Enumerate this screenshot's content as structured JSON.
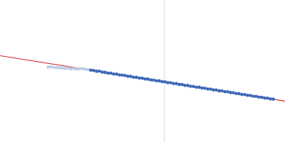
{
  "chart_data": {
    "type": "scatter",
    "xlim": [
      0,
      400
    ],
    "ylim": [
      0,
      200
    ],
    "tick_labels": false,
    "grid": false,
    "reference_x": 230,
    "reference_color": "#d5dcea",
    "fit": {
      "type": "line",
      "color": "#d62728",
      "x": [
        0,
        400
      ],
      "values": [
        122,
        58
      ]
    },
    "series": [
      {
        "color": "#bccbe6",
        "marker": "circle",
        "x": [
          67,
          71,
          75,
          79,
          83,
          87,
          91,
          95,
          99,
          103,
          107,
          111,
          115,
          119,
          123
        ],
        "values": [
          106,
          106.3,
          105.5,
          105.2,
          105,
          104.6,
          104.2,
          104.4,
          103.4,
          104,
          103.2,
          103.6,
          104,
          103.1,
          102.4
        ]
      },
      {
        "color": "#3a67b8",
        "marker": "circle",
        "x": [
          127,
          131,
          135,
          139,
          143,
          147,
          151,
          155,
          159,
          163,
          167,
          171,
          175,
          179,
          183,
          187,
          191,
          195,
          199,
          203,
          207,
          211,
          215,
          219,
          223,
          227,
          231,
          235,
          239,
          243,
          247,
          251,
          255,
          259,
          263,
          267,
          271,
          275,
          279,
          283,
          287,
          291,
          295,
          299,
          303,
          307,
          311,
          315,
          319,
          323,
          327,
          331,
          335,
          339,
          343,
          347,
          351,
          355,
          359,
          363,
          367,
          371,
          375,
          379,
          383
        ],
        "values": [
          101.7,
          101.2,
          100.1,
          100.2,
          98.9,
          98.6,
          97.5,
          97.4,
          96.3,
          96.1,
          95.0,
          94.8,
          94.2,
          93.1,
          92.9,
          91.8,
          91.6,
          90.5,
          90.4,
          89.2,
          89.1,
          88.0,
          87.8,
          86.7,
          86.6,
          85.5,
          85.2,
          84.1,
          84.0,
          82.9,
          82.7,
          81.6,
          81.4,
          80.3,
          80.1,
          79.0,
          78.8,
          77.8,
          77.6,
          76.5,
          76.3,
          75.2,
          75.0,
          73.9,
          73.7,
          72.6,
          72.5,
          71.4,
          71.2,
          70.1,
          69.9,
          68.8,
          68.6,
          67.5,
          67.3,
          66.2,
          66.0,
          65.0,
          64.8,
          63.7,
          63.5,
          62.4,
          62.2,
          61.2,
          60.9
        ]
      }
    ]
  }
}
